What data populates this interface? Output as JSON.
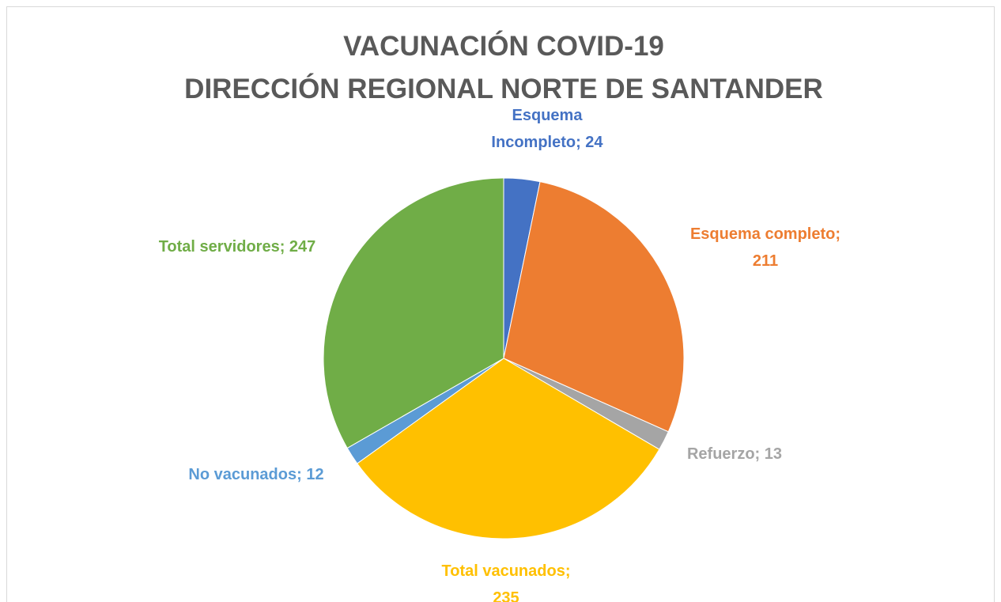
{
  "chart_data": {
    "type": "pie",
    "title": "VACUNACIÓN COVID-19",
    "subtitle": "DIRECCIÓN REGIONAL NORTE DE SANTANDER",
    "values": [
      24,
      211,
      13,
      235,
      12,
      247
    ],
    "value_labels": [
      "Esquema Incompleto; 24",
      "Esquema completo; 211",
      "Refuerzo; 13",
      "Total vacunados; 235",
      "No vacunados; 12",
      "Total servidores; 247"
    ],
    "colors": [
      "#4472c4",
      "#ed7d31",
      "#a5a5a5",
      "#ffc000",
      "#5b9bd5",
      "#70ad47"
    ]
  }
}
